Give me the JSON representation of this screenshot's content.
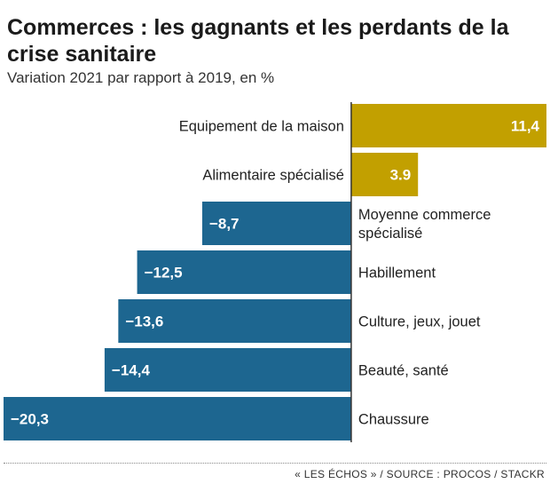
{
  "header": {
    "title": "Commerces : les gagnants et les perdants de la crise sanitaire",
    "subtitle": "Variation 2021 par rapport à 2019, en %"
  },
  "footer": {
    "source": "« LES ÉCHOS » / SOURCE : PROCOS / STACKR"
  },
  "colors": {
    "positive": "#c2a000",
    "negative": "#1d6690",
    "axis": "#333333"
  },
  "chart_data": {
    "type": "bar",
    "orientation": "horizontal",
    "title": "Commerces : les gagnants et les perdants de la crise sanitaire",
    "subtitle": "Variation 2021 par rapport à 2019, en %",
    "categories": [
      "Equipement de la maison",
      "Alimentaire spécialisé",
      "Moyenne commerce spécialisé",
      "Habillement",
      "Culture, jeux, jouet",
      "Beauté, santé",
      "Chaussure"
    ],
    "category_lines": [
      [
        "Equipement de la maison"
      ],
      [
        "Alimentaire spécialisé"
      ],
      [
        "Moyenne commerce",
        "spécialisé"
      ],
      [
        "Habillement"
      ],
      [
        "Culture, jeux, jouet"
      ],
      [
        "Beauté, santé"
      ],
      [
        "Chaussure"
      ]
    ],
    "values": [
      11.4,
      3.9,
      -8.7,
      -12.5,
      -13.6,
      -14.4,
      -20.3
    ],
    "data_labels": [
      "11,4",
      "3.9",
      "−8,7",
      "−12,5",
      "−13,6",
      "−14,4",
      "−20,3"
    ],
    "xlim": [
      -20.3,
      11.4
    ],
    "grid": false,
    "legend": "none"
  }
}
